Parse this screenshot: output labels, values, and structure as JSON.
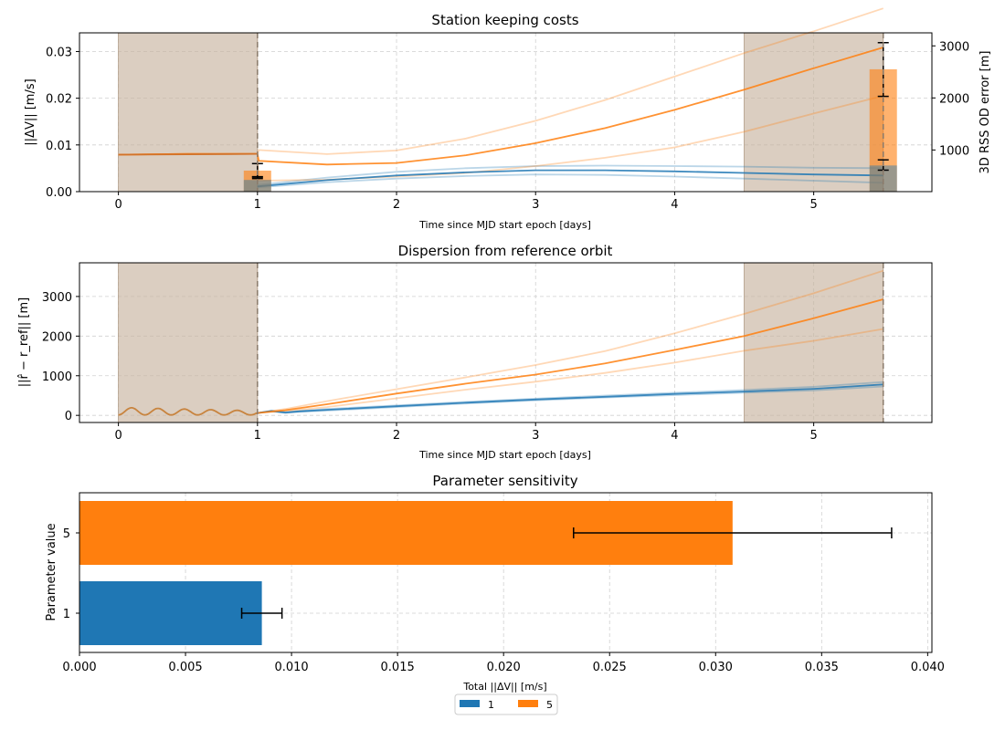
{
  "chart_data": [
    {
      "type": "line",
      "title": "Station keeping costs",
      "xlabel": "Time since MJD start epoch [days]",
      "ylabel": "||ΔV|| [m/s]",
      "ylabel_right": "3D RSS OD error [m]",
      "xlim": [
        -0.28,
        5.85
      ],
      "ylim": [
        0,
        0.034
      ],
      "ylim_right": [
        200,
        3250
      ],
      "x_ticks": [
        "0",
        "1",
        "2",
        "3",
        "4",
        "5"
      ],
      "y_ticks": [
        "0.00",
        "0.01",
        "0.02",
        "0.03"
      ],
      "y_ticks_right": [
        "1000",
        "2000",
        "3000"
      ],
      "grid": true,
      "shaded_regions": [
        [
          0,
          1
        ],
        [
          4.5,
          5.5
        ]
      ],
      "vlines": [
        1,
        5.5
      ],
      "series": [
        {
          "name": "1",
          "color": "#1f77b4",
          "axis": "right",
          "x": [
            1.0,
            1.5,
            2.0,
            2.5,
            3.0,
            3.5,
            4.0,
            4.5,
            5.0,
            5.5
          ],
          "mean": [
            300,
            420,
            510,
            570,
            610,
            610,
            590,
            560,
            530,
            510
          ],
          "upper": [
            330,
            470,
            580,
            650,
            690,
            700,
            690,
            680,
            660,
            650
          ],
          "lower": [
            280,
            380,
            450,
            500,
            530,
            520,
            490,
            450,
            410,
            370
          ]
        },
        {
          "name": "5",
          "color": "#ff7f0e",
          "axis": "right",
          "x": [
            0,
            0.5,
            1.0,
            1.01,
            1.5,
            2.0,
            2.5,
            3.0,
            3.5,
            4.0,
            4.5,
            5.0,
            5.5
          ],
          "mean": [
            910,
            925,
            925,
            790,
            720,
            750,
            900,
            1130,
            1420,
            1770,
            2160,
            2570,
            2970
          ],
          "upper": [
            910,
            925,
            925,
            1000,
            920,
            990,
            1220,
            1560,
            1960,
            2410,
            2860,
            3280,
            3720
          ],
          "lower": [
            910,
            925,
            925,
            410,
            430,
            490,
            560,
            690,
            850,
            1050,
            1350,
            1700,
            2040
          ]
        }
      ],
      "bars": [
        {
          "series": "5",
          "x": 1.0,
          "value": 0.0045,
          "err_low": 0.0032,
          "err_high": 0.006
        },
        {
          "series": "1",
          "x": 1.0,
          "value": 0.0025,
          "err_low": 0.0028,
          "err_high": 0.0031
        },
        {
          "series": "5",
          "x": 5.5,
          "value": 0.0262,
          "err_low": 0.0204,
          "err_high": 0.0319
        },
        {
          "series": "1",
          "x": 5.5,
          "value": 0.0056,
          "err_low": 0.0046,
          "err_high": 0.0068
        }
      ]
    },
    {
      "type": "line",
      "title": "Dispersion from reference orbit",
      "xlabel": "Time since MJD start epoch [days]",
      "ylabel": "||r̂ − r_ref|| [m]",
      "xlim": [
        -0.28,
        5.85
      ],
      "ylim": [
        -180,
        3850
      ],
      "x_ticks": [
        "0",
        "1",
        "2",
        "3",
        "4",
        "5"
      ],
      "y_ticks": [
        "0",
        "1000",
        "2000",
        "3000"
      ],
      "grid": true,
      "shaded_regions": [
        [
          0,
          1
        ],
        [
          4.5,
          5.5
        ]
      ],
      "vlines": [
        1,
        5.5
      ],
      "series": [
        {
          "name": "1",
          "color": "#1f77b4",
          "x": [
            1.0,
            1.1,
            1.2,
            1.3,
            1.5,
            2.0,
            2.5,
            3.0,
            3.5,
            4.0,
            4.5,
            5.0,
            5.5
          ],
          "mean": [
            60,
            110,
            70,
            100,
            140,
            230,
            320,
            400,
            470,
            540,
            600,
            670,
            780
          ],
          "upper": [
            60,
            120,
            80,
            110,
            160,
            250,
            340,
            420,
            500,
            570,
            640,
            720,
            840
          ],
          "lower": [
            60,
            100,
            60,
            90,
            120,
            210,
            300,
            380,
            450,
            510,
            570,
            630,
            730
          ]
        },
        {
          "name": "5",
          "color": "#ff7f0e",
          "x": [
            1.0,
            1.2,
            1.5,
            2.0,
            2.5,
            3.0,
            3.5,
            4.0,
            4.5,
            5.0,
            5.5
          ],
          "mean": [
            60,
            130,
            280,
            550,
            800,
            1030,
            1310,
            1650,
            2000,
            2450,
            2930
          ],
          "upper": [
            60,
            160,
            360,
            660,
            960,
            1270,
            1620,
            2070,
            2560,
            3080,
            3650
          ],
          "lower": [
            60,
            110,
            210,
            430,
            650,
            850,
            1070,
            1330,
            1630,
            1880,
            2180
          ]
        }
      ]
    },
    {
      "type": "bar",
      "orientation": "horizontal",
      "title": "Parameter sensitivity",
      "xlabel": "Total ||ΔV|| [m/s]",
      "ylabel": "Parameter value",
      "xlim": [
        0,
        0.0402
      ],
      "x_ticks": [
        "0.000",
        "0.005",
        "0.010",
        "0.015",
        "0.020",
        "0.025",
        "0.030",
        "0.035",
        "0.040"
      ],
      "categories": [
        "1",
        "5"
      ],
      "values": [
        0.0086,
        0.0308
      ],
      "errors": [
        0.00095,
        0.0075
      ],
      "colors": [
        "#1f77b4",
        "#ff7f0e"
      ],
      "grid": true,
      "legend": {
        "placement": "bottom-center",
        "entries": [
          {
            "label": "1",
            "color": "#1f77b4"
          },
          {
            "label": "5",
            "color": "#ff7f0e"
          }
        ]
      }
    }
  ]
}
